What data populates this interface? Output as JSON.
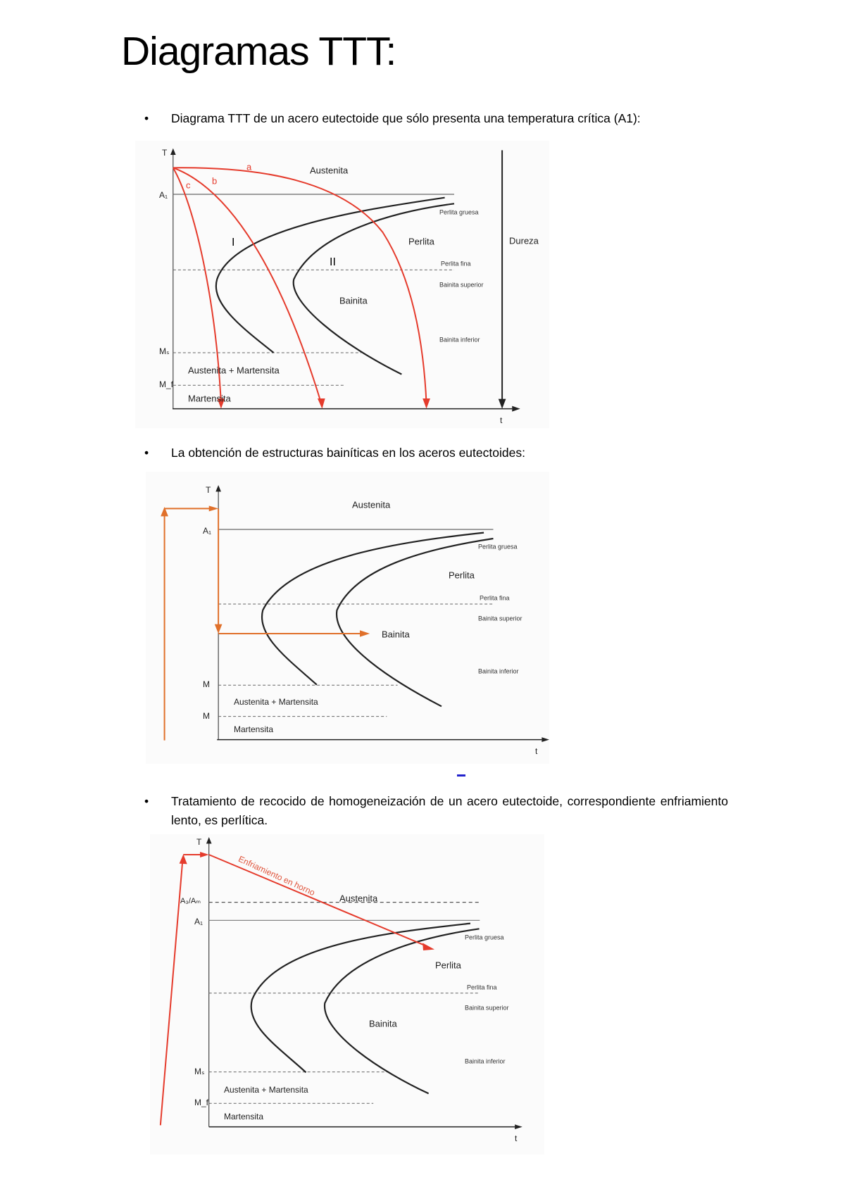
{
  "title": "Diagramas TTT:",
  "sections": [
    {
      "bullet": "•",
      "text": "Diagrama TTT de un acero eutectoide que sólo presenta una temperatura crítica (A1):",
      "diagram": {
        "axis_y": "T",
        "axis_x": "t",
        "a1": "A₁",
        "ms": "Mₛ",
        "mf": "M_f",
        "curves": [
          "a",
          "b",
          "c"
        ],
        "regions": {
          "I": "I",
          "II": "II"
        },
        "austenita": "Austenita",
        "perlita_gruesa": "Perlita gruesa",
        "perlita": "Perlita",
        "perlita_fina": "Perlita fina",
        "bainita_superior": "Bainita superior",
        "bainita": "Bainita",
        "bainita_inferior": "Bainita inferior",
        "austenita_martensita": "Austenita + Martensita",
        "martensita": "Martensita",
        "dureza": "Dureza",
        "cooling_color": "#e53b2c"
      }
    },
    {
      "bullet": "•",
      "text": "La obtención de estructuras bainíticas en los aceros eutectoides:",
      "diagram": {
        "axis_y": "T",
        "axis_x": "t",
        "a1": "A₁",
        "ms": "M",
        "mf": "M",
        "austenita": "Austenita",
        "perlita_gruesa": "Perlita gruesa",
        "perlita": "Perlita",
        "perlita_fina": "Perlita fina",
        "bainita_superior": "Bainita superior",
        "bainita": "Bainita",
        "bainita_inferior": "Bainita inferior",
        "austenita_martensita": "Austenita + Martensita",
        "martensita": "Martensita",
        "treatment_color": "#e0702a"
      }
    },
    {
      "bullet": "•",
      "text": "Tratamiento de recocido de homogeneización de un acero eutectoide, correspondiente enfriamiento lento, es perlítica.",
      "diagram": {
        "axis_y": "T",
        "axis_x": "t",
        "a3_acm": "A₃/Aₘ",
        "a1": "A₁",
        "ms": "Mₛ",
        "mf": "M_f",
        "cooling_label": "Enfriamiento en horno",
        "austenita": "Austenita",
        "perlita_gruesa": "Perlita gruesa",
        "perlita": "Perlita",
        "perlita_fina": "Perlita fina",
        "bainita_superior": "Bainita superior",
        "bainita": "Bainita",
        "bainita_inferior": "Bainita inferior",
        "austenita_martensita": "Austenita + Martensita",
        "martensita": "Martensita",
        "cooling_color": "#e53b2c"
      }
    }
  ]
}
